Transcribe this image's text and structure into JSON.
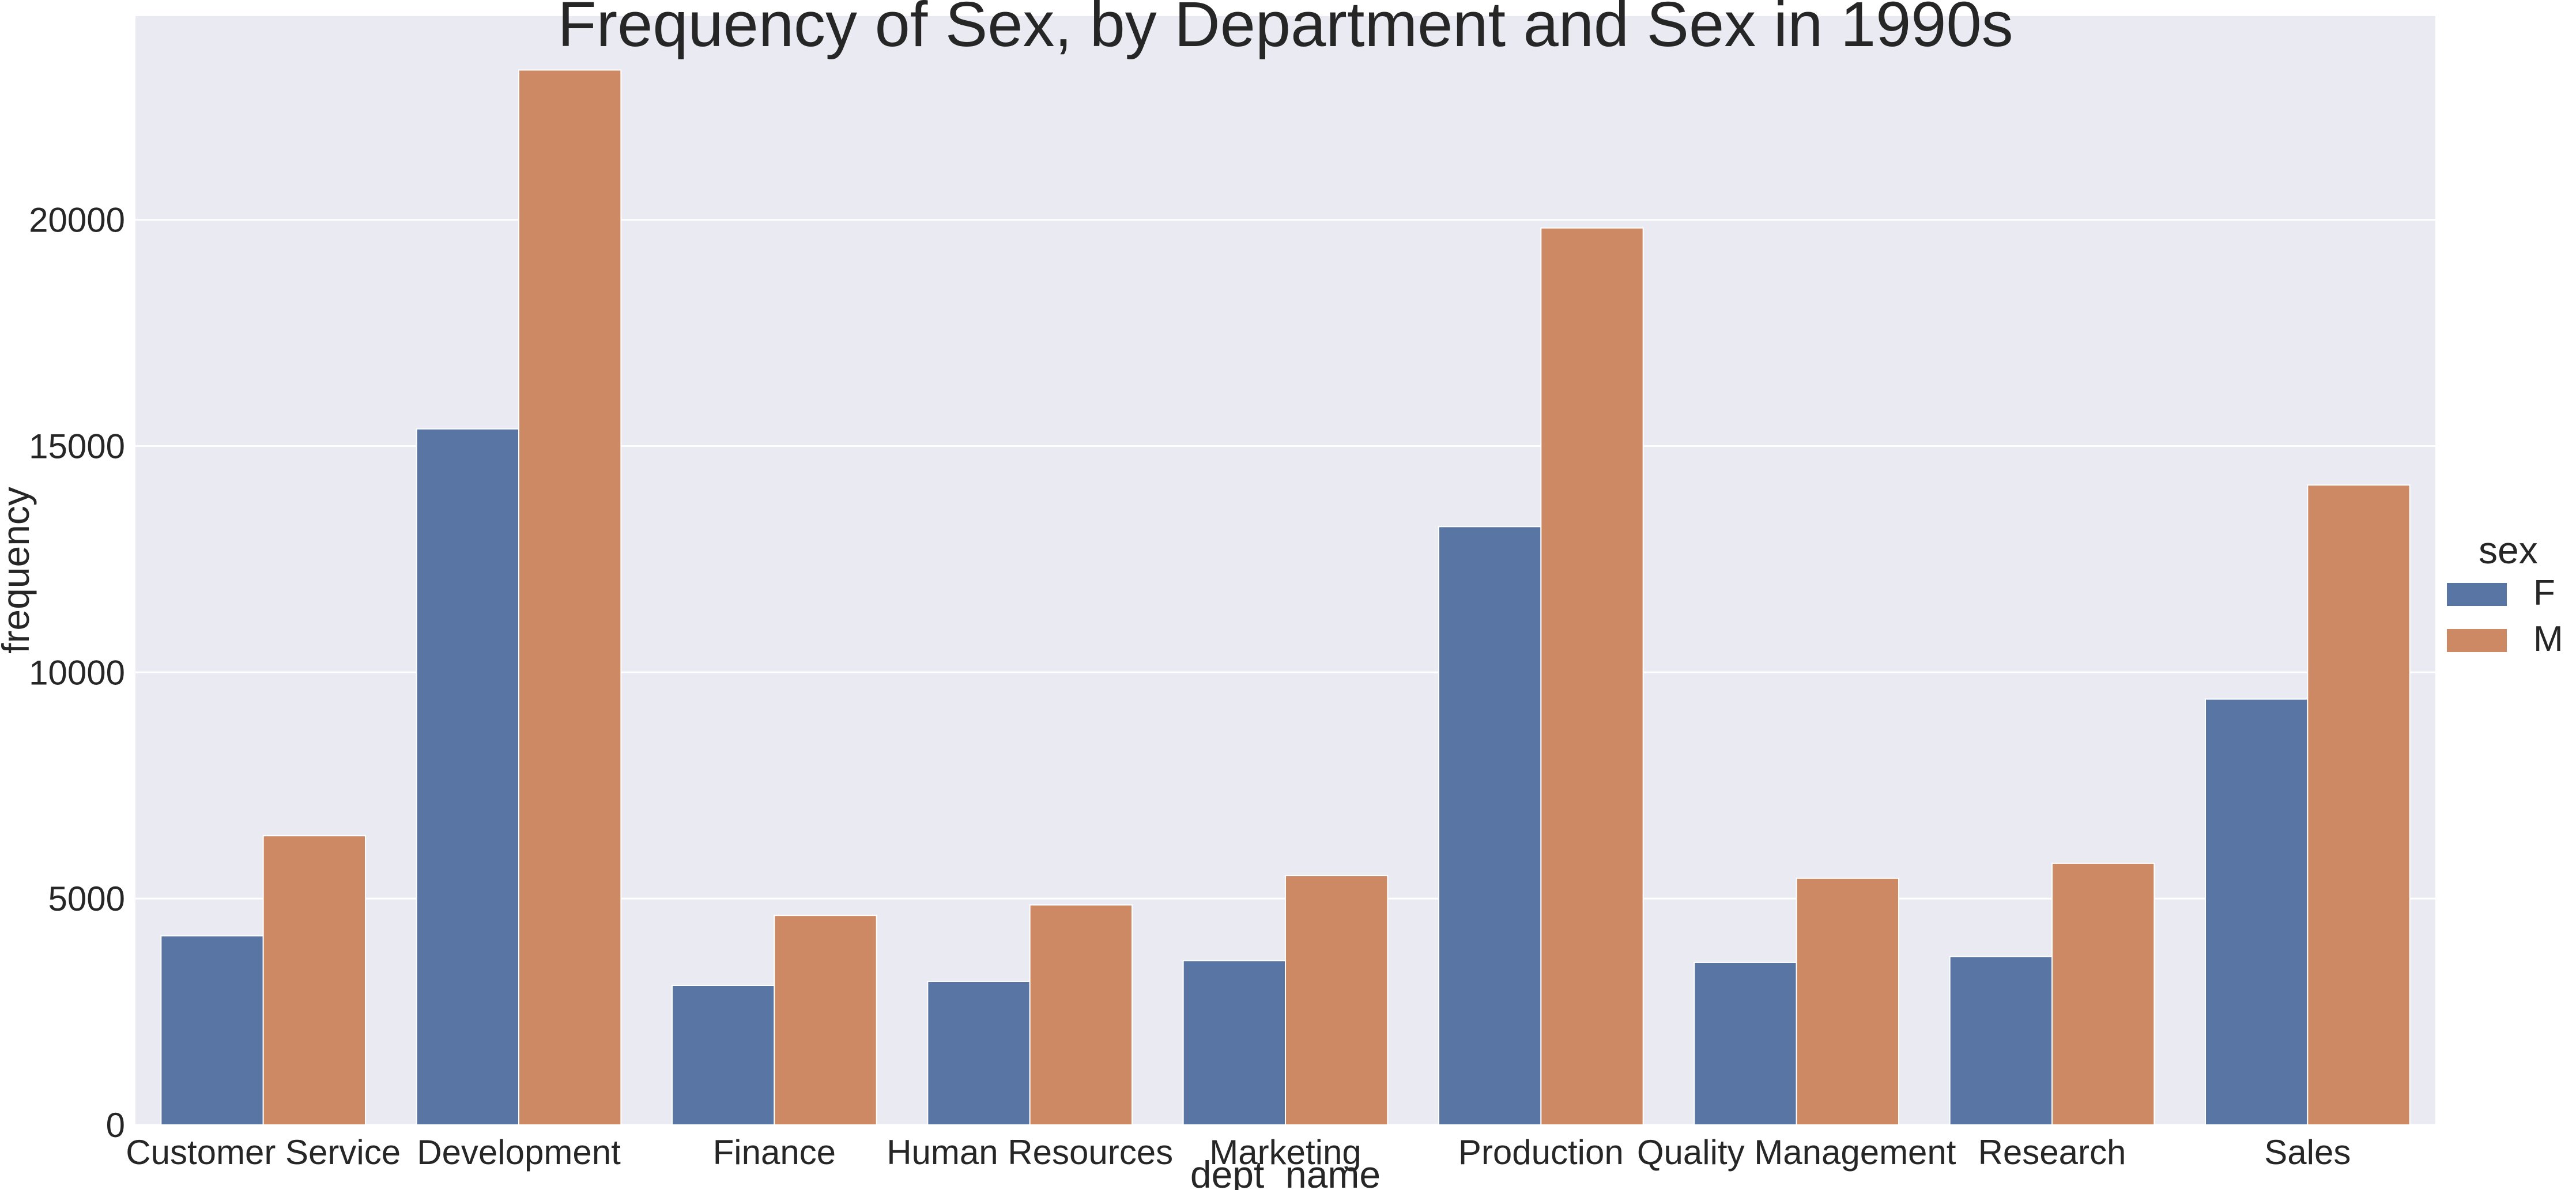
{
  "chart_data": {
    "type": "bar",
    "title": "Frequency of Sex, by Department and Sex in 1990s",
    "xlabel": "dept_name",
    "ylabel": "frequency",
    "categories": [
      "Customer Service",
      "Development",
      "Finance",
      "Human Resources",
      "Marketing",
      "Production",
      "Quality Management",
      "Research",
      "Sales"
    ],
    "series": [
      {
        "name": "F",
        "color": "#5975a4",
        "values": [
          4180,
          15380,
          3080,
          3170,
          3630,
          13220,
          3590,
          3720,
          9410
        ]
      },
      {
        "name": "M",
        "color": "#cc8963",
        "values": [
          6390,
          23310,
          4630,
          4860,
          5510,
          19820,
          5450,
          5780,
          14140
        ]
      }
    ],
    "ylim": [
      0,
      24500
    ],
    "yticks": [
      0,
      5000,
      10000,
      15000,
      20000
    ],
    "grid": true,
    "legend": {
      "title": "sex",
      "placement": "right"
    },
    "plot_background": "#eaeaf2",
    "grid_color": "#ffffff"
  }
}
